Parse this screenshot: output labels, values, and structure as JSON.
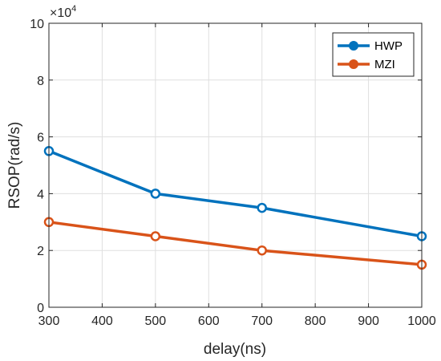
{
  "chart_data": {
    "type": "line",
    "title": "",
    "xlabel": "delay(ns)",
    "ylabel": "RSOP(rad/s)",
    "xlim": [
      300,
      1000
    ],
    "ylim": [
      0,
      100000
    ],
    "xticks": [
      300,
      400,
      500,
      600,
      700,
      800,
      900,
      1000
    ],
    "yticks": [
      0,
      20000,
      40000,
      60000,
      80000,
      100000
    ],
    "ytick_labels": [
      "0",
      "2",
      "4",
      "6",
      "8",
      "10"
    ],
    "y_exponent": {
      "base": "×10",
      "power": "4"
    },
    "grid": true,
    "legend_position": "top-right",
    "series": [
      {
        "name": "HWP",
        "color": "#0072BD",
        "x": [
          300,
          500,
          700,
          1000
        ],
        "y": [
          55000,
          40000,
          35000,
          25000
        ]
      },
      {
        "name": "MZI",
        "color": "#D95319",
        "x": [
          300,
          500,
          700,
          1000
        ],
        "y": [
          30000,
          25000,
          20000,
          15000
        ]
      }
    ]
  }
}
